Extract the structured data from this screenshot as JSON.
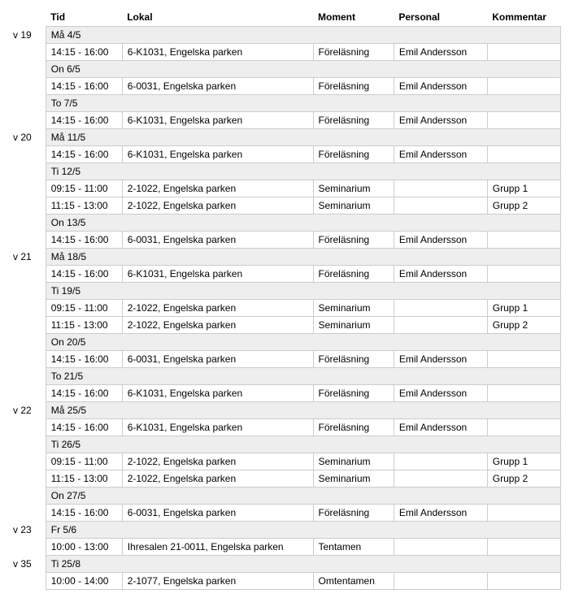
{
  "columns": {
    "tid": "Tid",
    "lokal": "Lokal",
    "moment": "Moment",
    "personal": "Personal",
    "kommentar": "Kommentar"
  },
  "rows": [
    {
      "type": "day",
      "week": "v 19",
      "label": "Må 4/5"
    },
    {
      "type": "event",
      "tid": "14:15 - 16:00",
      "lokal": "6-K1031, Engelska parken",
      "moment": "Föreläsning",
      "personal": "Emil Andersson",
      "kommentar": ""
    },
    {
      "type": "day",
      "label": "On 6/5"
    },
    {
      "type": "event",
      "tid": "14:15 - 16:00",
      "lokal": "6-0031, Engelska parken",
      "moment": "Föreläsning",
      "personal": "Emil Andersson",
      "kommentar": ""
    },
    {
      "type": "day",
      "label": "To 7/5"
    },
    {
      "type": "event",
      "tid": "14:15 - 16:00",
      "lokal": "6-K1031, Engelska parken",
      "moment": "Föreläsning",
      "personal": "Emil Andersson",
      "kommentar": ""
    },
    {
      "type": "day",
      "week": "v 20",
      "label": "Må 11/5"
    },
    {
      "type": "event",
      "tid": "14:15 - 16:00",
      "lokal": "6-K1031, Engelska parken",
      "moment": "Föreläsning",
      "personal": "Emil Andersson",
      "kommentar": ""
    },
    {
      "type": "day",
      "label": "Ti 12/5"
    },
    {
      "type": "event",
      "tid": "09:15 - 11:00",
      "lokal": "2-1022, Engelska parken",
      "moment": "Seminarium",
      "personal": "",
      "kommentar": "Grupp 1"
    },
    {
      "type": "event",
      "tid": "11:15 - 13:00",
      "lokal": "2-1022, Engelska parken",
      "moment": "Seminarium",
      "personal": "",
      "kommentar": "Grupp 2"
    },
    {
      "type": "day",
      "label": "On 13/5"
    },
    {
      "type": "event",
      "tid": "14:15 - 16:00",
      "lokal": "6-0031, Engelska parken",
      "moment": "Föreläsning",
      "personal": "Emil Andersson",
      "kommentar": ""
    },
    {
      "type": "day",
      "week": "v 21",
      "label": "Må 18/5"
    },
    {
      "type": "event",
      "tid": "14:15 - 16:00",
      "lokal": "6-K1031, Engelska parken",
      "moment": "Föreläsning",
      "personal": "Emil Andersson",
      "kommentar": ""
    },
    {
      "type": "day",
      "label": "Ti 19/5"
    },
    {
      "type": "event",
      "tid": "09:15 - 11:00",
      "lokal": "2-1022, Engelska parken",
      "moment": "Seminarium",
      "personal": "",
      "kommentar": "Grupp 1"
    },
    {
      "type": "event",
      "tid": "11:15 - 13:00",
      "lokal": "2-1022, Engelska parken",
      "moment": "Seminarium",
      "personal": "",
      "kommentar": "Grupp 2"
    },
    {
      "type": "day",
      "label": "On 20/5"
    },
    {
      "type": "event",
      "tid": "14:15 - 16:00",
      "lokal": "6-0031, Engelska parken",
      "moment": "Föreläsning",
      "personal": "Emil Andersson",
      "kommentar": ""
    },
    {
      "type": "day",
      "label": "To 21/5"
    },
    {
      "type": "event",
      "tid": "14:15 - 16:00",
      "lokal": "6-K1031, Engelska parken",
      "moment": "Föreläsning",
      "personal": "Emil Andersson",
      "kommentar": ""
    },
    {
      "type": "day",
      "week": "v 22",
      "label": "Må 25/5"
    },
    {
      "type": "event",
      "tid": "14:15 - 16:00",
      "lokal": "6-K1031, Engelska parken",
      "moment": "Föreläsning",
      "personal": "Emil Andersson",
      "kommentar": ""
    },
    {
      "type": "day",
      "label": "Ti 26/5"
    },
    {
      "type": "event",
      "tid": "09:15 - 11:00",
      "lokal": "2-1022, Engelska parken",
      "moment": "Seminarium",
      "personal": "",
      "kommentar": "Grupp 1"
    },
    {
      "type": "event",
      "tid": "11:15 - 13:00",
      "lokal": "2-1022, Engelska parken",
      "moment": "Seminarium",
      "personal": "",
      "kommentar": "Grupp 2"
    },
    {
      "type": "day",
      "label": "On 27/5"
    },
    {
      "type": "event",
      "tid": "14:15 - 16:00",
      "lokal": "6-0031, Engelska parken",
      "moment": "Föreläsning",
      "personal": "Emil Andersson",
      "kommentar": ""
    },
    {
      "type": "day",
      "week": "v 23",
      "label": "Fr 5/6"
    },
    {
      "type": "event",
      "tid": "10:00 - 13:00",
      "lokal": "Ihresalen 21-0011, Engelska parken",
      "moment": "Tentamen",
      "personal": "",
      "kommentar": ""
    },
    {
      "type": "day",
      "week": "v 35",
      "label": "Ti 25/8"
    },
    {
      "type": "event",
      "tid": "10:00 - 14:00",
      "lokal": "2-1077, Engelska parken",
      "moment": "Omtentamen",
      "personal": "",
      "kommentar": ""
    }
  ]
}
